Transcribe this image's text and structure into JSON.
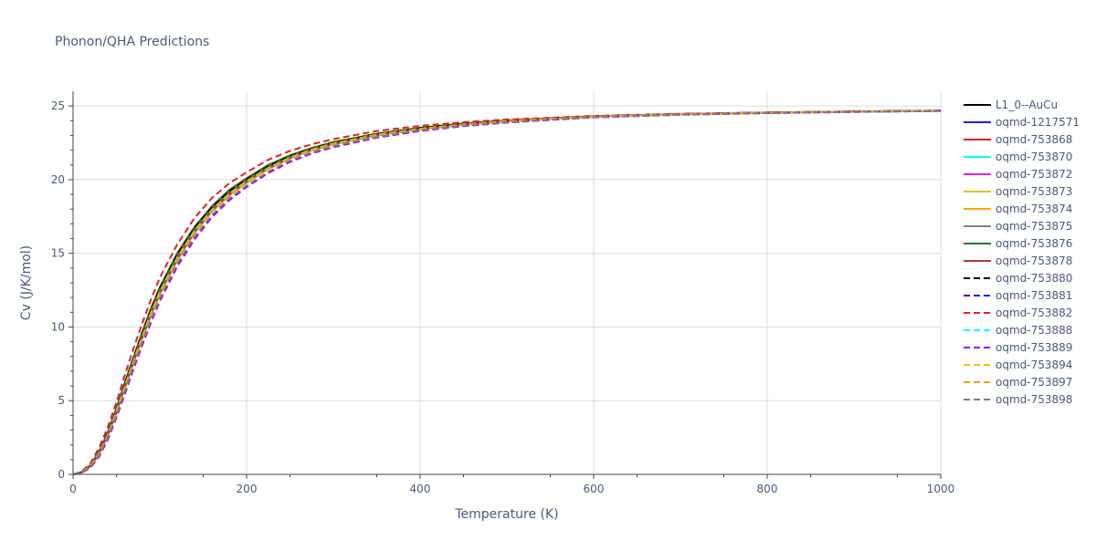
{
  "chart_data": {
    "type": "line",
    "title": "Phonon/QHA Predictions",
    "xlabel": "Temperature (K)",
    "ylabel": "Cv (J/K/mol)",
    "xlim": [
      0,
      1000
    ],
    "ylim": [
      0,
      26
    ],
    "x_ticks": [
      0,
      200,
      400,
      600,
      800,
      1000
    ],
    "y_ticks": [
      0,
      5,
      10,
      15,
      20,
      25
    ],
    "grid": true,
    "legend_placement": "right",
    "x": [
      0,
      10,
      20,
      30,
      40,
      50,
      60,
      70,
      80,
      90,
      100,
      120,
      140,
      160,
      180,
      200,
      225,
      250,
      275,
      300,
      350,
      400,
      450,
      500,
      550,
      600,
      700,
      800,
      900,
      1000
    ],
    "series": [
      {
        "name": "L1_0--AuCu",
        "color": "#000000",
        "dash": "solid",
        "values": [
          0,
          0.15,
          0.6,
          1.5,
          2.8,
          4.4,
          6.2,
          7.9,
          9.6,
          11.2,
          12.6,
          14.9,
          16.7,
          18.1,
          19.2,
          20.0,
          20.9,
          21.6,
          22.1,
          22.5,
          23.1,
          23.5,
          23.8,
          24.0,
          24.15,
          24.3,
          24.45,
          24.55,
          24.62,
          24.68
        ]
      },
      {
        "name": "oqmd-1217571",
        "color": "#1f1fe6",
        "dash": "solid",
        "values": [
          0,
          0.14,
          0.57,
          1.45,
          2.7,
          4.3,
          6.05,
          7.75,
          9.4,
          11.0,
          12.4,
          14.7,
          16.55,
          17.95,
          19.05,
          19.9,
          20.8,
          21.5,
          22.05,
          22.45,
          23.05,
          23.45,
          23.75,
          23.97,
          24.13,
          24.28,
          24.44,
          24.54,
          24.61,
          24.67
        ]
      },
      {
        "name": "oqmd-753868",
        "color": "#e61f1f",
        "dash": "solid",
        "values": [
          0,
          0.15,
          0.6,
          1.5,
          2.8,
          4.4,
          6.2,
          7.9,
          9.6,
          11.2,
          12.6,
          14.9,
          16.7,
          18.1,
          19.2,
          20.0,
          20.9,
          21.6,
          22.1,
          22.5,
          23.1,
          23.5,
          23.8,
          24.0,
          24.15,
          24.3,
          24.45,
          24.55,
          24.62,
          24.68
        ]
      },
      {
        "name": "oqmd-753870",
        "color": "#00ffff",
        "dash": "solid",
        "values": [
          0,
          0.14,
          0.57,
          1.45,
          2.7,
          4.3,
          6.05,
          7.75,
          9.4,
          11.0,
          12.4,
          14.7,
          16.55,
          17.95,
          19.05,
          19.9,
          20.8,
          21.5,
          22.05,
          22.45,
          23.05,
          23.45,
          23.75,
          23.97,
          24.13,
          24.28,
          24.44,
          24.54,
          24.61,
          24.67
        ]
      },
      {
        "name": "oqmd-753872",
        "color": "#e61fe6",
        "dash": "solid",
        "values": [
          0,
          0.13,
          0.55,
          1.4,
          2.65,
          4.2,
          5.95,
          7.65,
          9.3,
          10.85,
          12.25,
          14.55,
          16.4,
          17.85,
          18.95,
          19.8,
          20.75,
          21.45,
          22.0,
          22.4,
          23.0,
          23.42,
          23.73,
          23.95,
          24.12,
          24.27,
          24.43,
          24.53,
          24.61,
          24.67
        ]
      },
      {
        "name": "oqmd-753873",
        "color": "#e6c21f",
        "dash": "solid",
        "values": [
          0,
          0.14,
          0.57,
          1.45,
          2.7,
          4.3,
          6.05,
          7.75,
          9.4,
          11.0,
          12.4,
          14.7,
          16.55,
          17.95,
          19.05,
          19.9,
          20.8,
          21.5,
          22.05,
          22.45,
          23.05,
          23.45,
          23.75,
          23.97,
          24.13,
          24.28,
          24.44,
          24.54,
          24.61,
          24.67
        ]
      },
      {
        "name": "oqmd-753874",
        "color": "#ffa500",
        "dash": "solid",
        "values": [
          0,
          0.13,
          0.55,
          1.4,
          2.65,
          4.2,
          5.95,
          7.65,
          9.3,
          10.85,
          12.25,
          14.55,
          16.4,
          17.85,
          18.95,
          19.8,
          20.75,
          21.45,
          22.0,
          22.4,
          23.0,
          23.42,
          23.73,
          23.95,
          24.12,
          24.27,
          24.43,
          24.53,
          24.61,
          24.67
        ]
      },
      {
        "name": "oqmd-753875",
        "color": "#808080",
        "dash": "solid",
        "values": [
          0,
          0.13,
          0.55,
          1.4,
          2.65,
          4.2,
          5.95,
          7.65,
          9.3,
          10.85,
          12.25,
          14.55,
          16.4,
          17.85,
          18.95,
          19.8,
          20.75,
          21.45,
          22.0,
          22.4,
          23.0,
          23.42,
          23.73,
          23.95,
          24.12,
          24.27,
          24.43,
          24.53,
          24.61,
          24.67
        ]
      },
      {
        "name": "oqmd-753876",
        "color": "#1a801a",
        "dash": "solid",
        "values": [
          0,
          0.16,
          0.63,
          1.55,
          2.85,
          4.5,
          6.3,
          8.0,
          9.7,
          11.3,
          12.7,
          15.0,
          16.8,
          18.2,
          19.3,
          20.1,
          21.0,
          21.65,
          22.15,
          22.55,
          23.12,
          23.52,
          23.8,
          24.01,
          24.16,
          24.3,
          24.45,
          24.55,
          24.62,
          24.68
        ]
      },
      {
        "name": "oqmd-753878",
        "color": "#b03a3a",
        "dash": "solid",
        "values": [
          0,
          0.14,
          0.57,
          1.45,
          2.7,
          4.3,
          6.05,
          7.75,
          9.4,
          11.0,
          12.4,
          14.7,
          16.55,
          17.95,
          19.05,
          19.9,
          20.8,
          21.5,
          22.05,
          22.45,
          23.05,
          23.45,
          23.75,
          23.97,
          24.13,
          24.28,
          24.44,
          24.54,
          24.61,
          24.67
        ]
      },
      {
        "name": "oqmd-753880",
        "color": "#000000",
        "dash": "dash",
        "values": [
          0,
          0.15,
          0.6,
          1.5,
          2.8,
          4.4,
          6.2,
          7.9,
          9.6,
          11.2,
          12.6,
          14.9,
          16.7,
          18.1,
          19.2,
          20.0,
          20.9,
          21.6,
          22.1,
          22.5,
          23.1,
          23.5,
          23.8,
          24.0,
          24.15,
          24.3,
          24.45,
          24.55,
          24.62,
          24.68
        ]
      },
      {
        "name": "oqmd-753881",
        "color": "#1f1fe6",
        "dash": "dash",
        "values": [
          0,
          0.14,
          0.57,
          1.45,
          2.7,
          4.3,
          6.05,
          7.75,
          9.4,
          11.0,
          12.4,
          14.7,
          16.55,
          17.95,
          19.05,
          19.9,
          20.8,
          21.5,
          22.05,
          22.45,
          23.05,
          23.45,
          23.75,
          23.97,
          24.13,
          24.28,
          24.44,
          24.54,
          24.61,
          24.67
        ]
      },
      {
        "name": "oqmd-753882",
        "color": "#e61f1f",
        "dash": "dash",
        "values": [
          0,
          0.2,
          0.75,
          1.8,
          3.2,
          4.9,
          6.8,
          8.6,
          10.3,
          11.9,
          13.35,
          15.6,
          17.4,
          18.75,
          19.75,
          20.5,
          21.35,
          21.95,
          22.4,
          22.75,
          23.3,
          23.65,
          23.9,
          24.08,
          24.2,
          24.33,
          24.47,
          24.56,
          24.63,
          24.69
        ]
      },
      {
        "name": "oqmd-753888",
        "color": "#00ffff",
        "dash": "dash",
        "values": [
          0,
          0.14,
          0.57,
          1.45,
          2.7,
          4.3,
          6.05,
          7.75,
          9.4,
          11.0,
          12.4,
          14.7,
          16.55,
          17.95,
          19.05,
          19.9,
          20.8,
          21.5,
          22.05,
          22.45,
          23.05,
          23.45,
          23.75,
          23.97,
          24.13,
          24.28,
          24.44,
          24.54,
          24.61,
          24.67
        ]
      },
      {
        "name": "oqmd-753889",
        "color": "#9900ff",
        "dash": "dash",
        "values": [
          0,
          0.1,
          0.45,
          1.2,
          2.35,
          3.85,
          5.5,
          7.2,
          8.8,
          10.35,
          11.75,
          14.1,
          15.95,
          17.45,
          18.6,
          19.5,
          20.45,
          21.2,
          21.78,
          22.2,
          22.85,
          23.3,
          23.63,
          23.87,
          24.05,
          24.22,
          24.4,
          24.51,
          24.59,
          24.66
        ]
      },
      {
        "name": "oqmd-753894",
        "color": "#e6c21f",
        "dash": "dash",
        "values": [
          0,
          0.14,
          0.57,
          1.45,
          2.7,
          4.3,
          6.05,
          7.75,
          9.4,
          11.0,
          12.4,
          14.7,
          16.55,
          17.95,
          19.05,
          19.9,
          20.8,
          21.5,
          22.05,
          22.45,
          23.05,
          23.45,
          23.75,
          23.97,
          24.13,
          24.28,
          24.44,
          24.54,
          24.61,
          24.67
        ]
      },
      {
        "name": "oqmd-753897",
        "color": "#e6a01f",
        "dash": "dash",
        "values": [
          0,
          0.13,
          0.55,
          1.4,
          2.65,
          4.2,
          5.95,
          7.65,
          9.3,
          10.85,
          12.25,
          14.55,
          16.4,
          17.85,
          18.95,
          19.8,
          20.75,
          21.45,
          22.0,
          22.4,
          23.0,
          23.42,
          23.73,
          23.95,
          24.12,
          24.27,
          24.43,
          24.53,
          24.61,
          24.67
        ]
      },
      {
        "name": "oqmd-753898",
        "color": "#808080",
        "dash": "dash",
        "values": [
          0,
          0.12,
          0.5,
          1.3,
          2.5,
          4.0,
          5.7,
          7.4,
          9.0,
          10.55,
          11.95,
          14.3,
          16.15,
          17.6,
          18.75,
          19.6,
          20.55,
          21.3,
          21.85,
          22.28,
          22.9,
          23.35,
          23.67,
          23.9,
          24.08,
          24.24,
          24.41,
          24.52,
          24.6,
          24.66
        ]
      }
    ]
  }
}
